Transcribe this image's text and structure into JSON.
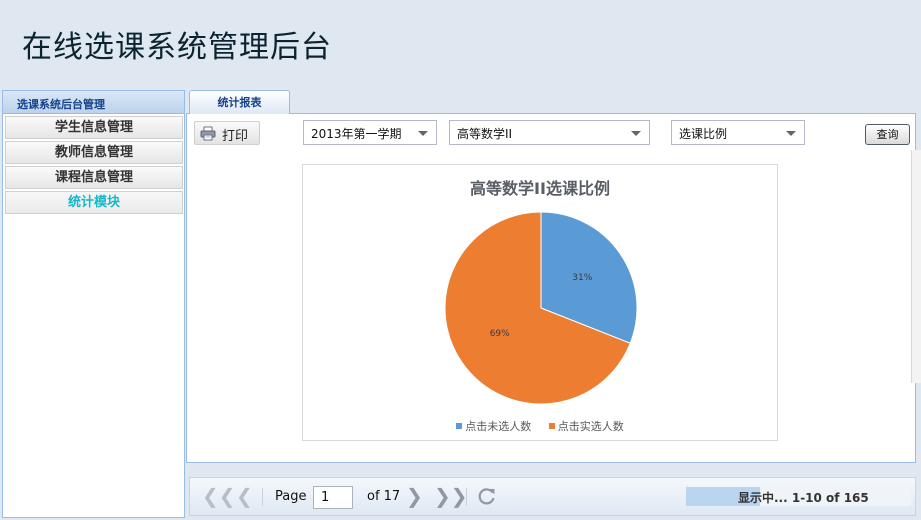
{
  "app": {
    "title": "在线选课系统管理后台"
  },
  "sidebar": {
    "header": "选课系统后台管理",
    "items": [
      {
        "label": "学生信息管理",
        "active": false
      },
      {
        "label": "教师信息管理",
        "active": false
      },
      {
        "label": "课程信息管理",
        "active": false
      },
      {
        "label": "统计模块",
        "active": true
      }
    ]
  },
  "tabs": [
    {
      "label": "统计报表"
    }
  ],
  "toolbar": {
    "print_label": "打印",
    "print_icon": "printer-icon",
    "semester": {
      "selected": "2013年第一学期"
    },
    "course": {
      "selected": "高等数学II"
    },
    "stat_type": {
      "selected": "选课比例"
    },
    "query_label": "查询"
  },
  "chart_data": {
    "type": "pie",
    "title": "高等数学II选课比例",
    "slices": [
      {
        "name": "点击未选人数",
        "value": 31,
        "label": "31%",
        "color": "#5b9bd5"
      },
      {
        "name": "点击实选人数",
        "value": 69,
        "label": "69%",
        "color": "#ed7d31"
      }
    ],
    "legend_position": "bottom"
  },
  "paging": {
    "page_label": "Page",
    "current_page": "1",
    "of_label": "of 17",
    "status_text": "显示中... 1-10 of 165",
    "status_progress": 0.33,
    "icons": [
      "first-page-icon",
      "prev-page-icon",
      "next-page-icon",
      "last-page-icon",
      "refresh-icon"
    ]
  }
}
